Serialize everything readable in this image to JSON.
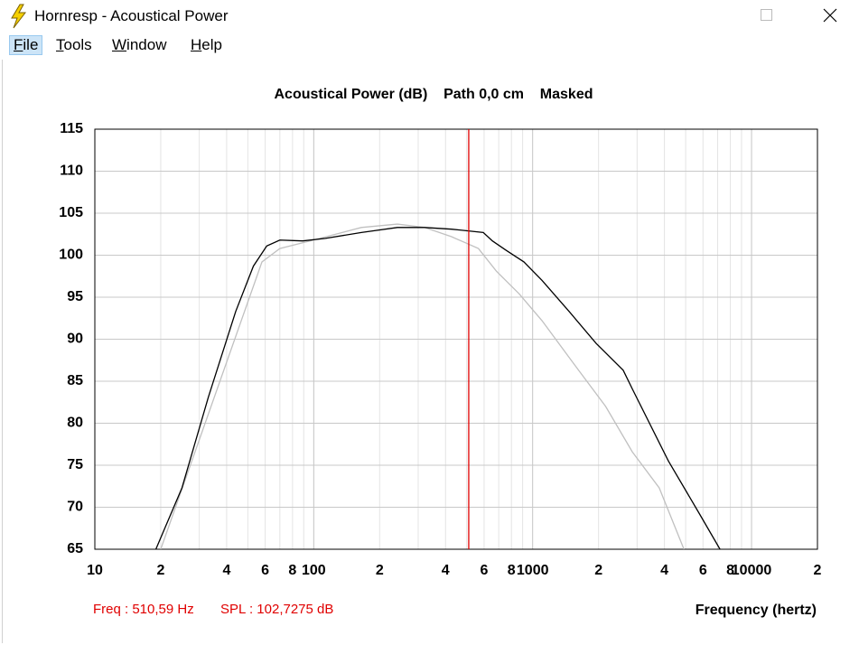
{
  "window": {
    "title": "Hornresp - Acoustical Power",
    "menu": [
      "File",
      "Tools",
      "Window",
      "Help"
    ]
  },
  "status": {
    "freq": "Freq : 510,59 Hz",
    "spl": "SPL : 102,7275 dB"
  },
  "chart_data": {
    "type": "line",
    "title": "Acoustical Power (dB)    Path 0,0 cm    Masked",
    "x_label": "Frequency (hertz)",
    "log_x": true,
    "grid": true,
    "xlim": [
      10,
      20000
    ],
    "ylim": [
      65,
      115
    ],
    "xticks": [
      10,
      {
        "value": 20,
        "label": "2"
      },
      {
        "value": 40,
        "label": "4"
      },
      {
        "value": 60,
        "label": "6"
      },
      {
        "value": 80,
        "label": "8"
      },
      100,
      {
        "value": 200,
        "label": "2"
      },
      {
        "value": 400,
        "label": "4"
      },
      {
        "value": 600,
        "label": "6"
      },
      {
        "value": 800,
        "label": "8"
      },
      1000,
      {
        "value": 2000,
        "label": "2"
      },
      {
        "value": 4000,
        "label": "4"
      },
      {
        "value": 6000,
        "label": "6"
      },
      {
        "value": 8000,
        "label": "8"
      },
      10000,
      {
        "value": 20000,
        "label": "2"
      }
    ],
    "xminorticks": [
      30,
      50,
      70,
      90,
      300,
      500,
      700,
      900,
      3000,
      5000,
      7000,
      9000
    ],
    "yticks": [
      65,
      70,
      75,
      80,
      85,
      90,
      95,
      100,
      105,
      110,
      115
    ],
    "cursor_x": 510.59,
    "cursor_color": "#e00000",
    "series": [
      {
        "color": "#000000",
        "x": [
          19,
          25,
          33,
          44,
          53,
          61,
          70,
          89,
          113,
          165,
          241,
          321,
          426,
          595,
          655,
          755,
          912,
          1104,
          1468,
          1951,
          2593,
          2851,
          4170,
          5816,
          7175
        ],
        "values": [
          65,
          72.3,
          83.1,
          93.3,
          98.7,
          101.1,
          101.8,
          101.7,
          102.0,
          102.7,
          103.3,
          103.3,
          103.1,
          102.7,
          101.7,
          100.6,
          99.2,
          97.0,
          93.3,
          89.5,
          86.3,
          84.1,
          75.5,
          69.1,
          65
        ]
      },
      {
        "color": "#c0c0c0",
        "x": [
          20,
          58,
          70,
          103,
          165,
          241,
          321,
          426,
          565,
          683,
          868,
          1104,
          1622,
          2155,
          2851,
          3787,
          4911
        ],
        "values": [
          65,
          99.2,
          100.8,
          101.9,
          103.3,
          103.7,
          103.3,
          102.2,
          100.8,
          98.1,
          95.4,
          92.2,
          86.3,
          82.0,
          76.6,
          72.3,
          65
        ]
      }
    ]
  }
}
